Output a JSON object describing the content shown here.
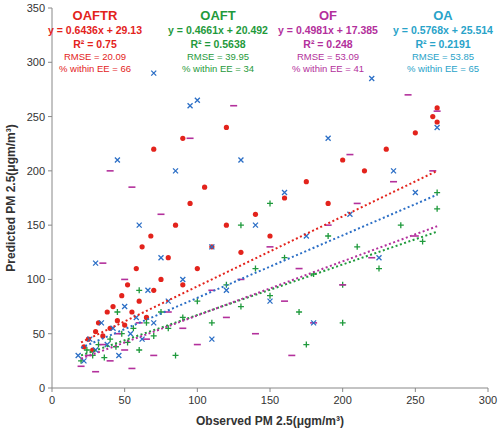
{
  "chart_data": {
    "type": "scatter",
    "xlabel": "Observed PM 2.5(μgm/m³)",
    "ylabel": "Predicted PM 2.5(μgm/m³)",
    "xlim": [
      0,
      300
    ],
    "ylim": [
      0,
      350
    ],
    "xticks": [
      0,
      50,
      100,
      150,
      200,
      250,
      300
    ],
    "yticks": [
      0,
      50,
      100,
      150,
      200,
      250,
      300,
      350
    ],
    "grid": false,
    "series": [
      {
        "name": "OAFTR",
        "color": "#e3231c",
        "marker": "circle",
        "x": [
          22,
          25,
          28,
          30,
          32,
          35,
          38,
          40,
          42,
          45,
          48,
          50,
          52,
          55,
          58,
          60,
          62,
          65,
          68,
          70,
          75,
          80,
          85,
          90,
          95,
          100,
          105,
          110,
          120,
          130,
          140,
          150,
          160,
          175,
          190,
          200,
          215,
          230,
          250,
          262,
          265,
          265,
          120,
          90,
          70
        ],
        "values": [
          38,
          45,
          35,
          52,
          60,
          48,
          70,
          55,
          75,
          62,
          85,
          58,
          95,
          70,
          110,
          80,
          130,
          65,
          140,
          90,
          100,
          120,
          150,
          95,
          170,
          110,
          185,
          130,
          150,
          125,
          160,
          140,
          175,
          190,
          170,
          210,
          200,
          220,
          235,
          250,
          258,
          245,
          240,
          230,
          220
        ]
      },
      {
        "name": "OAFT",
        "color": "#1f9a3c",
        "marker": "plus",
        "x": [
          20,
          24,
          28,
          32,
          36,
          40,
          44,
          48,
          52,
          56,
          60,
          65,
          70,
          75,
          80,
          90,
          100,
          110,
          120,
          130,
          140,
          150,
          160,
          170,
          180,
          190,
          200,
          210,
          225,
          240,
          255,
          265,
          265,
          85,
          60,
          45,
          150,
          200,
          175,
          130
        ],
        "values": [
          25,
          35,
          30,
          40,
          28,
          45,
          38,
          50,
          42,
          55,
          35,
          60,
          48,
          70,
          55,
          65,
          80,
          60,
          95,
          75,
          110,
          85,
          120,
          70,
          105,
          140,
          95,
          130,
          110,
          150,
          135,
          165,
          180,
          30,
          90,
          70,
          170,
          60,
          40,
          150
        ]
      },
      {
        "name": "OF",
        "color": "#b3309c",
        "marker": "dash",
        "x": [
          20,
          25,
          30,
          35,
          40,
          45,
          50,
          55,
          60,
          65,
          70,
          80,
          90,
          100,
          110,
          120,
          130,
          140,
          150,
          160,
          170,
          180,
          190,
          200,
          210,
          220,
          235,
          250,
          262,
          265,
          40,
          55,
          75,
          95,
          125,
          165,
          205,
          245,
          50,
          35
        ],
        "values": [
          20,
          30,
          15,
          40,
          25,
          50,
          35,
          18,
          60,
          45,
          30,
          70,
          55,
          40,
          90,
          65,
          100,
          50,
          130,
          80,
          110,
          60,
          150,
          95,
          170,
          120,
          190,
          140,
          200,
          255,
          200,
          185,
          160,
          230,
          260,
          30,
          215,
          270,
          100,
          115
        ]
      },
      {
        "name": "OA",
        "color": "#2c6fc6",
        "marker": "x",
        "x": [
          18,
          22,
          26,
          30,
          34,
          38,
          42,
          46,
          50,
          54,
          58,
          62,
          66,
          70,
          75,
          80,
          85,
          90,
          100,
          110,
          120,
          130,
          140,
          150,
          160,
          175,
          190,
          205,
          220,
          235,
          250,
          265,
          70,
          95,
          45,
          60,
          110,
          180,
          225,
          30
        ],
        "values": [
          30,
          25,
          45,
          35,
          60,
          40,
          55,
          30,
          75,
          50,
          65,
          45,
          90,
          60,
          120,
          80,
          200,
          100,
          265,
          130,
          90,
          210,
          150,
          80,
          180,
          140,
          230,
          160,
          285,
          200,
          180,
          240,
          290,
          260,
          210,
          150,
          45,
          60,
          120,
          115
        ]
      },
      {
        "type": "line",
        "line_style": "dotted",
        "color": "#e3231c",
        "x": [
          20,
          265
        ],
        "values": [
          42,
          200
        ]
      },
      {
        "type": "line",
        "line_style": "dotted",
        "color": "#1f9a3c",
        "x": [
          20,
          265
        ],
        "values": [
          30,
          144
        ]
      },
      {
        "type": "line",
        "line_style": "dotted",
        "color": "#b3309c",
        "x": [
          20,
          265
        ],
        "values": [
          27,
          149
        ]
      },
      {
        "type": "line",
        "line_style": "dotted",
        "color": "#2c6fc6",
        "x": [
          20,
          265
        ],
        "values": [
          37,
          178
        ]
      }
    ],
    "annotations": [
      {
        "color": "#e3231c",
        "lines": [
          "y = 0.6436x + 29.13",
          "R² = 0.75",
          "RMSE = 20.09",
          "% within EE = 66"
        ]
      },
      {
        "color": "#1f9a3c",
        "lines": [
          "y = 0.4661x + 20.492",
          "R² = 0.5638",
          "RMSE = 39.95",
          "% within EE = 34"
        ]
      },
      {
        "color": "#b3309c",
        "lines": [
          "y = 0.4981x + 17.385",
          "R² = 0.248",
          "RMSE = 53.09",
          "% within EE = 41"
        ]
      },
      {
        "color": "#29a3c9",
        "lines": [
          "y = 0.5768x + 25.514",
          "R² = 0.2191",
          "RMSE = 53.85",
          "% within EE = 65"
        ]
      }
    ]
  }
}
